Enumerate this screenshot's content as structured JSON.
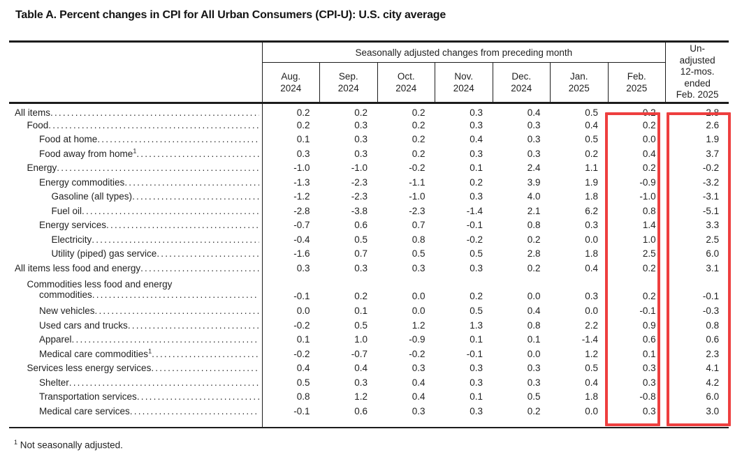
{
  "title": "Table A. Percent changes in CPI for All Urban Consumers (CPI-U): U.S. city average",
  "header": {
    "span": "Seasonally adjusted changes from preceding month",
    "months": [
      {
        "line1": "Aug.",
        "line2": "2024"
      },
      {
        "line1": "Sep.",
        "line2": "2024"
      },
      {
        "line1": "Oct.",
        "line2": "2024"
      },
      {
        "line1": "Nov.",
        "line2": "2024"
      },
      {
        "line1": "Dec.",
        "line2": "2024"
      },
      {
        "line1": "Jan.",
        "line2": "2025"
      },
      {
        "line1": "Feb.",
        "line2": "2025"
      }
    ],
    "unadjusted_lines": [
      "Un-",
      "adjusted",
      "12-mos.",
      "ended",
      "Feb. 2025"
    ]
  },
  "rows": [
    {
      "label": "All items",
      "indent": 0,
      "values": [
        "0.2",
        "0.2",
        "0.2",
        "0.3",
        "0.4",
        "0.5",
        "0.2",
        "2.8"
      ]
    },
    {
      "label": "Food",
      "indent": 1,
      "values": [
        "0.2",
        "0.3",
        "0.2",
        "0.3",
        "0.3",
        "0.4",
        "0.2",
        "2.6"
      ]
    },
    {
      "label": "Food at home",
      "indent": 2,
      "values": [
        "0.1",
        "0.3",
        "0.2",
        "0.4",
        "0.3",
        "0.5",
        "0.0",
        "1.9"
      ]
    },
    {
      "label": "Food away from home",
      "sup": "1",
      "indent": 2,
      "values": [
        "0.3",
        "0.3",
        "0.2",
        "0.3",
        "0.3",
        "0.2",
        "0.4",
        "3.7"
      ]
    },
    {
      "label": "Energy",
      "indent": 1,
      "values": [
        "-1.0",
        "-1.0",
        "-0.2",
        "0.1",
        "2.4",
        "1.1",
        "0.2",
        "-0.2"
      ]
    },
    {
      "label": "Energy commodities",
      "indent": 2,
      "values": [
        "-1.3",
        "-2.3",
        "-1.1",
        "0.2",
        "3.9",
        "1.9",
        "-0.9",
        "-3.2"
      ]
    },
    {
      "label": "Gasoline (all types)",
      "indent": 3,
      "values": [
        "-1.2",
        "-2.3",
        "-1.0",
        "0.3",
        "4.0",
        "1.8",
        "-1.0",
        "-3.1"
      ]
    },
    {
      "label": "Fuel oil",
      "indent": 3,
      "values": [
        "-2.8",
        "-3.8",
        "-2.3",
        "-1.4",
        "2.1",
        "6.2",
        "0.8",
        "-5.1"
      ]
    },
    {
      "label": "Energy services",
      "indent": 2,
      "values": [
        "-0.7",
        "0.6",
        "0.7",
        "-0.1",
        "0.8",
        "0.3",
        "1.4",
        "3.3"
      ]
    },
    {
      "label": "Electricity",
      "indent": 3,
      "values": [
        "-0.4",
        "0.5",
        "0.8",
        "-0.2",
        "0.2",
        "0.0",
        "1.0",
        "2.5"
      ]
    },
    {
      "label": "Utility (piped) gas service",
      "indent": 3,
      "values": [
        "-1.6",
        "0.7",
        "0.5",
        "0.5",
        "2.8",
        "1.8",
        "2.5",
        "6.0"
      ]
    },
    {
      "label": "All items less food and energy",
      "indent": 0,
      "values": [
        "0.3",
        "0.3",
        "0.3",
        "0.3",
        "0.2",
        "0.4",
        "0.2",
        "3.1"
      ]
    },
    {
      "label_line1": "Commodities less food and energy",
      "label": "commodities",
      "indent": 1,
      "values": [
        "-0.1",
        "0.2",
        "0.0",
        "0.2",
        "0.0",
        "0.3",
        "0.2",
        "-0.1"
      ]
    },
    {
      "label": "New vehicles",
      "indent": 2,
      "values": [
        "0.0",
        "0.1",
        "0.0",
        "0.5",
        "0.4",
        "0.0",
        "-0.1",
        "-0.3"
      ]
    },
    {
      "label": "Used cars and trucks",
      "indent": 2,
      "values": [
        "-0.2",
        "0.5",
        "1.2",
        "1.3",
        "0.8",
        "2.2",
        "0.9",
        "0.8"
      ]
    },
    {
      "label": "Apparel",
      "indent": 2,
      "values": [
        "0.1",
        "1.0",
        "-0.9",
        "0.1",
        "0.1",
        "-1.4",
        "0.6",
        "0.6"
      ]
    },
    {
      "label": "Medical care commodities",
      "sup": "1",
      "indent": 2,
      "values": [
        "-0.2",
        "-0.7",
        "-0.2",
        "-0.1",
        "0.0",
        "1.2",
        "0.1",
        "2.3"
      ]
    },
    {
      "label": "Services less energy services",
      "indent": 1,
      "values": [
        "0.4",
        "0.4",
        "0.3",
        "0.3",
        "0.3",
        "0.5",
        "0.3",
        "4.1"
      ]
    },
    {
      "label": "Shelter",
      "indent": 2,
      "values": [
        "0.5",
        "0.3",
        "0.4",
        "0.3",
        "0.3",
        "0.4",
        "0.3",
        "4.2"
      ]
    },
    {
      "label": "Transportation services",
      "indent": 2,
      "values": [
        "0.8",
        "1.2",
        "0.4",
        "0.1",
        "0.5",
        "1.8",
        "-0.8",
        "6.0"
      ]
    },
    {
      "label": "Medical care services",
      "indent": 2,
      "values": [
        "-0.1",
        "0.6",
        "0.3",
        "0.3",
        "0.2",
        "0.0",
        "0.3",
        "3.0"
      ]
    }
  ],
  "footnote": {
    "sup": "1",
    "text": "Not seasonally adjusted."
  },
  "highlight": {
    "color": "#ee3f3f",
    "boxes": [
      "feb-2025-column",
      "12-month-column"
    ]
  }
}
